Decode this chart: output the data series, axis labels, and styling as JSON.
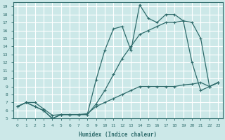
{
  "xlabel": "Humidex (Indice chaleur)",
  "background_color": "#cce8e8",
  "grid_color": "#ffffff",
  "line_color": "#2e6b6b",
  "xlim": [
    -0.5,
    23.5
  ],
  "ylim": [
    5,
    19.5
  ],
  "xticks": [
    0,
    1,
    2,
    3,
    4,
    5,
    6,
    7,
    8,
    9,
    10,
    11,
    12,
    13,
    14,
    15,
    16,
    17,
    18,
    19,
    20,
    21,
    22,
    23
  ],
  "yticks": [
    5,
    6,
    7,
    8,
    9,
    10,
    11,
    12,
    13,
    14,
    15,
    16,
    17,
    18,
    19
  ],
  "line1_x": [
    0,
    1,
    2,
    3,
    4,
    5,
    6,
    7,
    8,
    9,
    10,
    11,
    12,
    13,
    14,
    15,
    16,
    17,
    18,
    19,
    20,
    21,
    22,
    23
  ],
  "line1_y": [
    6.5,
    7.0,
    7.0,
    6.2,
    5.4,
    5.5,
    5.5,
    5.5,
    5.6,
    6.5,
    7.0,
    7.5,
    8.0,
    8.5,
    9.0,
    9.0,
    9.0,
    9.0,
    9.0,
    9.2,
    9.3,
    9.5,
    9.0,
    9.5
  ],
  "line2_x": [
    0,
    1,
    2,
    3,
    4,
    5,
    6,
    7,
    8,
    9,
    10,
    11,
    12,
    13,
    14,
    15,
    16,
    17,
    18,
    19,
    20,
    21,
    22,
    23
  ],
  "line2_y": [
    6.5,
    7.0,
    6.5,
    6.0,
    5.0,
    5.5,
    5.5,
    5.5,
    5.5,
    6.8,
    8.5,
    10.5,
    12.5,
    14.0,
    15.5,
    16.0,
    16.5,
    17.0,
    17.0,
    17.2,
    17.0,
    15.0,
    9.0,
    9.5
  ],
  "line3_x": [
    0,
    1,
    2,
    3,
    4,
    5,
    6,
    7,
    8,
    9,
    10,
    11,
    12,
    13,
    14,
    15,
    16,
    17,
    18,
    19,
    20,
    21,
    22,
    23
  ],
  "line3_y": [
    6.5,
    7.0,
    6.5,
    6.0,
    5.0,
    5.5,
    5.5,
    5.5,
    5.5,
    9.8,
    13.5,
    16.2,
    16.5,
    13.5,
    19.2,
    17.5,
    17.0,
    18.0,
    18.0,
    17.2,
    12.0,
    8.5,
    9.0,
    9.5
  ]
}
